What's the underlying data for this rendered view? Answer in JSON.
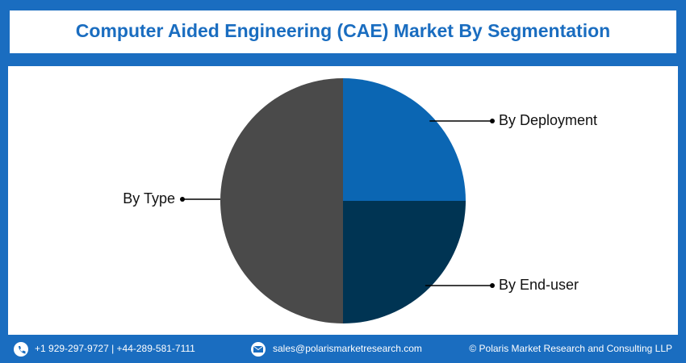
{
  "chart_data": {
    "type": "pie",
    "title": "Computer Aided Engineering (CAE) Market By Segmentation",
    "categories": [
      "By Deployment",
      "By End-user",
      "By Type"
    ],
    "values": [
      25,
      25,
      50
    ],
    "colors": [
      "#0b66b3",
      "#003453",
      "#4a4a4a"
    ]
  },
  "footer": {
    "phone": "+1 929-297-9727 | +44-289-581-7111",
    "email": "sales@polarismarketresearch.com",
    "copyright": "© Polaris Market Research and Consulting LLP"
  }
}
